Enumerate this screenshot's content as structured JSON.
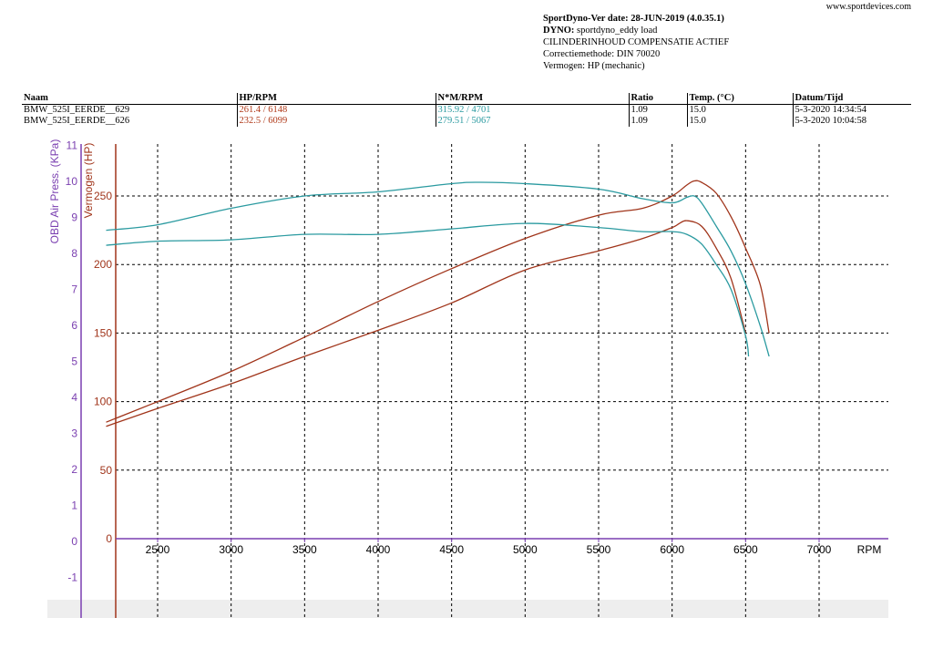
{
  "site": "www.sportdevices.com",
  "meta": {
    "line1": "SportDyno-Ver date: 28-JUN-2019 (4.0.35.1)",
    "line2_label": "DYNO:",
    "line2_value": "sportdyno_eddy load",
    "line3": "CILINDERINHOUD COMPENSATIE ACTIEF",
    "line4": "Correctiemethode: DIN 70020",
    "line5": "Vermogen: HP (mechanic)"
  },
  "table": {
    "headers": [
      "Naam",
      "HP/RPM",
      "N*M/RPM",
      "Ratio",
      "Temp. (°C)",
      "Datum/Tijd"
    ],
    "rows": [
      {
        "naam": "BMW_525I_EERDE__629",
        "hp": "261.4 / 6148",
        "nm": "315.92 / 4701",
        "ratio": "1.09",
        "temp": "15.0",
        "datum": "5-3-2020 14:34:54"
      },
      {
        "naam": "BMW_525I_EERDE__626",
        "hp": "232.5 / 6099",
        "nm": "279.51 / 5067",
        "ratio": "1.09",
        "temp": "15.0",
        "datum": "5-3-2020 10:04:58"
      }
    ]
  },
  "colors": {
    "hp": "#a0341a",
    "torque": "#2a9aa0",
    "left_axis": "#7a3fb0",
    "mid_axis": "#a0341a"
  },
  "chart_data": {
    "type": "line",
    "xlabel": "RPM",
    "x_ticks": [
      2500,
      3000,
      3500,
      4000,
      4500,
      5000,
      5500,
      6000,
      6500,
      7000
    ],
    "xlim": [
      2150,
      7500
    ],
    "ylabel_left": "OBD Air Press. (KPa)",
    "y_left_ticks": [
      "-1",
      "0",
      "1",
      "2",
      "3",
      "4",
      "5",
      "6",
      "7",
      "8",
      "9",
      "10",
      "11"
    ],
    "y_left_lim": [
      -1,
      11
    ],
    "ylabel_right": "Vermogen (HP)",
    "y_right_ticks": [
      0,
      50,
      100,
      150,
      200,
      250
    ],
    "y_right_lim": [
      0,
      300
    ],
    "grid": true,
    "series": [
      {
        "kind": "hp",
        "x": [
          2150,
          2500,
          3000,
          3500,
          4000,
          4500,
          5000,
          5500,
          5800,
          6000,
          6100,
          6150,
          6200,
          6300,
          6400,
          6500,
          6600,
          6660
        ],
        "y": [
          85,
          100,
          122,
          147,
          173,
          197,
          219,
          236,
          241,
          250,
          258,
          261,
          260,
          252,
          235,
          212,
          185,
          150
        ]
      },
      {
        "kind": "hp",
        "x": [
          2150,
          2500,
          3000,
          3500,
          4000,
          4500,
          5000,
          5500,
          5800,
          6000,
          6050,
          6100,
          6200,
          6300,
          6400,
          6500
        ],
        "y": [
          82,
          95,
          113,
          133,
          152,
          172,
          196,
          210,
          219,
          227,
          230,
          232,
          228,
          212,
          190,
          150
        ]
      },
      {
        "kind": "torque",
        "x": [
          2150,
          2500,
          3000,
          3500,
          4000,
          4500,
          4700,
          5000,
          5500,
          5800,
          6000,
          6100,
          6150,
          6200,
          6300,
          6400,
          6500,
          6600,
          6660
        ],
        "y": [
          225,
          229,
          241,
          250,
          253,
          259,
          260,
          259,
          255,
          248,
          245,
          249,
          250,
          245,
          228,
          210,
          186,
          155,
          133
        ]
      },
      {
        "kind": "torque",
        "x": [
          2150,
          2500,
          3000,
          3500,
          4000,
          4500,
          5000,
          5500,
          5800,
          6000,
          6100,
          6200,
          6300,
          6400,
          6500,
          6520
        ],
        "y": [
          214,
          217,
          218,
          222,
          222,
          226,
          230,
          227,
          224,
          224,
          222,
          215,
          200,
          182,
          148,
          133
        ]
      }
    ]
  }
}
